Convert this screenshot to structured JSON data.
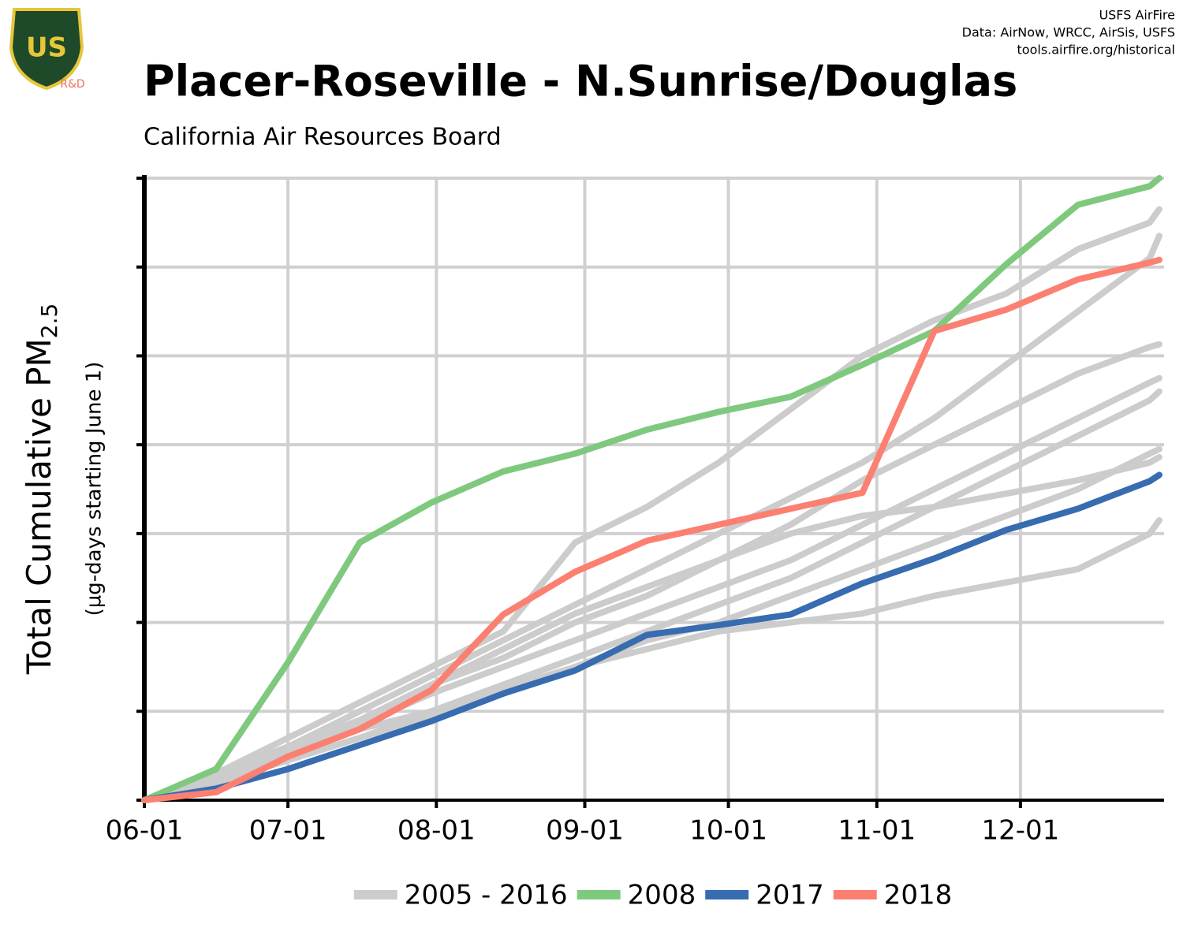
{
  "chart_data": {
    "type": "line",
    "title": "Placer-Roseville - N.Sunrise/Douglas",
    "subtitle": "California Air Resources Board",
    "credits": [
      "USFS AirFire",
      "Data: AirNow, WRCC, AirSis, USFS",
      "tools.airfire.org/historical"
    ],
    "logo_text": "US",
    "logo_label": "R&D",
    "y_label": "Total Cumulative PM",
    "y_label_sub": "2.5",
    "y_sublabel": "(µg-days starting June 1)",
    "grid": true,
    "legend": "bottom",
    "xlim": [
      0,
      213
    ],
    "xticks": [
      {
        "value": 0,
        "label": "06-01"
      },
      {
        "value": 30,
        "label": "07-01"
      },
      {
        "value": 61,
        "label": "08-01"
      },
      {
        "value": 92,
        "label": "09-01"
      },
      {
        "value": 122,
        "label": "10-01"
      },
      {
        "value": 153,
        "label": "11-01"
      },
      {
        "value": 183,
        "label": "12-01"
      }
    ],
    "ylim": [
      0,
      7
    ],
    "yticks": [
      0,
      1,
      2,
      3,
      4,
      5,
      6,
      7
    ],
    "x": [
      0,
      15,
      30,
      45,
      60,
      75,
      90,
      105,
      120,
      135,
      150,
      165,
      180,
      195,
      210,
      212
    ],
    "series": [
      {
        "name": "2005 - 2016",
        "color": "#cccccc",
        "lines": [
          [
            0,
            0.3,
            0.7,
            1.1,
            1.5,
            1.9,
            2.9,
            3.3,
            3.8,
            4.4,
            5.0,
            5.4,
            5.7,
            6.2,
            6.5,
            6.65
          ],
          [
            0,
            0.3,
            0.6,
            1.0,
            1.4,
            1.8,
            2.2,
            2.6,
            3.0,
            3.4,
            3.8,
            4.3,
            4.9,
            5.5,
            6.1,
            6.35
          ],
          [
            0,
            0.3,
            0.6,
            0.9,
            1.3,
            1.6,
            2.0,
            2.3,
            2.7,
            3.1,
            3.6,
            4.0,
            4.4,
            4.8,
            5.1,
            5.13
          ],
          [
            0,
            0.25,
            0.55,
            0.85,
            1.2,
            1.5,
            1.8,
            2.1,
            2.4,
            2.7,
            3.1,
            3.5,
            3.9,
            4.3,
            4.7,
            4.75
          ],
          [
            0,
            0.2,
            0.5,
            0.8,
            1.0,
            1.3,
            1.6,
            1.9,
            2.2,
            2.5,
            2.9,
            3.3,
            3.7,
            4.1,
            4.5,
            4.6
          ],
          [
            0,
            0.2,
            0.45,
            0.7,
            0.95,
            1.2,
            1.5,
            1.8,
            2.0,
            2.3,
            2.6,
            2.9,
            3.2,
            3.5,
            3.9,
            3.95
          ],
          [
            0,
            0.3,
            0.6,
            0.9,
            1.3,
            1.7,
            2.1,
            2.4,
            2.7,
            3.0,
            3.2,
            3.3,
            3.45,
            3.6,
            3.8,
            3.86
          ],
          [
            0,
            0.2,
            0.45,
            0.7,
            1.0,
            1.25,
            1.5,
            1.7,
            1.9,
            2.0,
            2.1,
            2.3,
            2.45,
            2.6,
            3.0,
            3.15
          ]
        ]
      },
      {
        "name": "2008",
        "color": "#7fc97f",
        "values": [
          0,
          0.35,
          1.55,
          2.9,
          3.35,
          3.7,
          3.9,
          4.17,
          4.37,
          4.54,
          4.9,
          5.28,
          6.03,
          6.7,
          6.91,
          7.0
        ]
      },
      {
        "name": "2017",
        "color": "#386cb0",
        "values": [
          0,
          0.13,
          0.35,
          0.62,
          0.89,
          1.2,
          1.46,
          1.86,
          1.97,
          2.09,
          2.44,
          2.72,
          3.04,
          3.28,
          3.59,
          3.66
        ]
      },
      {
        "name": "2018",
        "color": "#fb8072",
        "values": [
          0,
          0.09,
          0.49,
          0.8,
          1.24,
          2.09,
          2.57,
          2.92,
          3.1,
          3.28,
          3.46,
          5.28,
          5.52,
          5.86,
          6.05,
          6.08
        ]
      }
    ]
  }
}
